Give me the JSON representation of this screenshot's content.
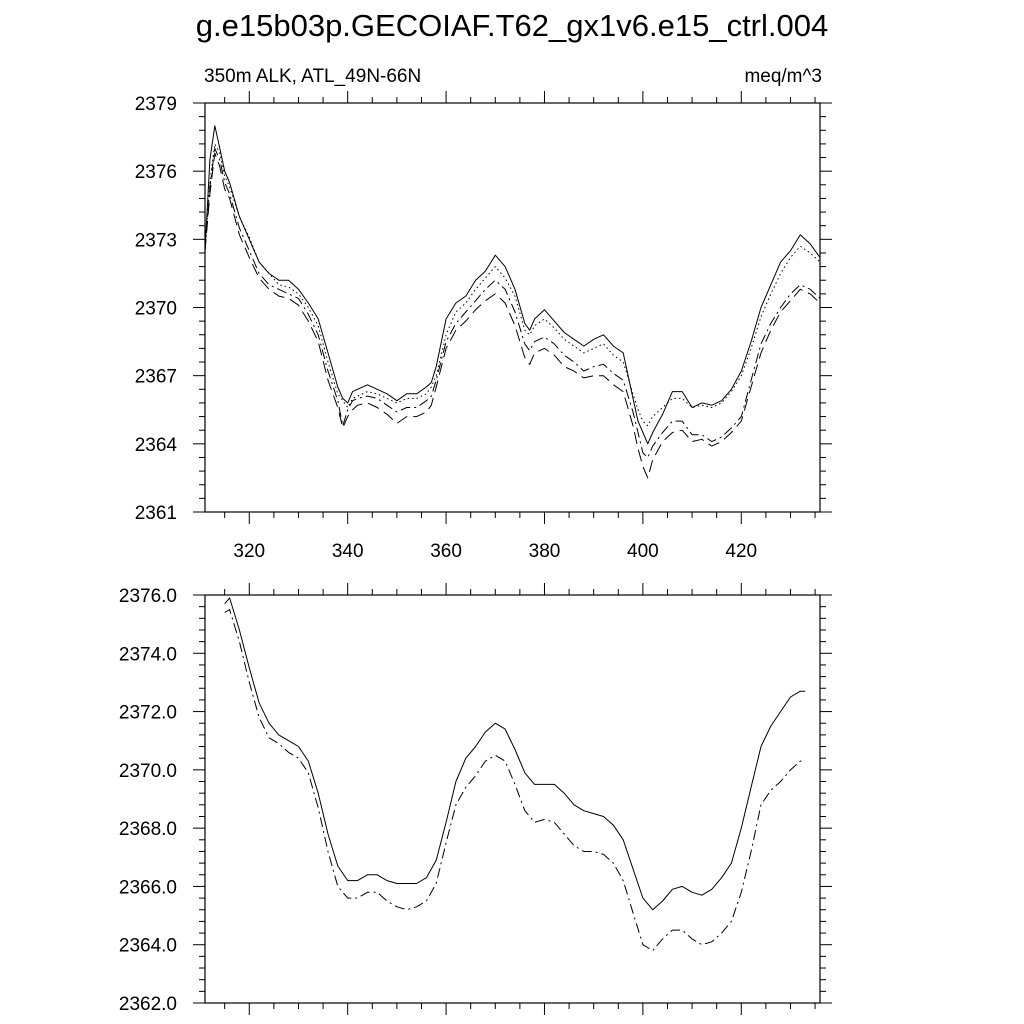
{
  "title": "g.e15b03p.GECOIAF.T62_gx1v6.e15_ctrl.004",
  "chart_data": [
    {
      "type": "line",
      "title": "g.e15b03p.GECOIAF.T62_gx1v6.e15_ctrl.004",
      "left_label": "350m ALK, ATL_49N-66N",
      "right_label": "meq/m^3",
      "xlim": [
        311,
        436
      ],
      "ylim": [
        2361,
        2379
      ],
      "x_ticks": [
        320,
        340,
        360,
        380,
        400,
        420
      ],
      "x_tick_labels": [
        "320",
        "340",
        "360",
        "380",
        "400",
        "420"
      ],
      "y_ticks": [
        2361,
        2364,
        2367,
        2370,
        2373,
        2376,
        2379
      ],
      "y_tick_labels": [
        "2361",
        "2364",
        "2367",
        "2370",
        "2373",
        "2376",
        "2379"
      ],
      "x": [
        311,
        312,
        313,
        314,
        315,
        316,
        318,
        320,
        322,
        324,
        326,
        328,
        330,
        332,
        334,
        336,
        338,
        339,
        340,
        341,
        342,
        344,
        346,
        348,
        350,
        352,
        354,
        356,
        357,
        358,
        360,
        362,
        364,
        366,
        368,
        370,
        372,
        374,
        376,
        377,
        378,
        380,
        382,
        384,
        386,
        388,
        390,
        392,
        394,
        396,
        398,
        399,
        400,
        401,
        402,
        404,
        406,
        408,
        410,
        412,
        414,
        416,
        418,
        420,
        422,
        424,
        426,
        428,
        430,
        432,
        434,
        436
      ],
      "series": [
        {
          "style": "solid",
          "values": [
            2372.5,
            2376.5,
            2378.0,
            2377.0,
            2376.0,
            2375.5,
            2374.0,
            2373.0,
            2372.0,
            2371.5,
            2371.2,
            2371.2,
            2370.8,
            2370.2,
            2369.5,
            2368.0,
            2366.5,
            2366.0,
            2365.8,
            2366.3,
            2366.4,
            2366.6,
            2366.4,
            2366.2,
            2365.9,
            2366.2,
            2366.2,
            2366.5,
            2366.7,
            2367.4,
            2369.5,
            2370.2,
            2370.5,
            2371.2,
            2371.6,
            2372.3,
            2371.8,
            2370.8,
            2369.3,
            2369.0,
            2369.5,
            2369.9,
            2369.4,
            2368.9,
            2368.6,
            2368.3,
            2368.6,
            2368.8,
            2368.3,
            2368.0,
            2366.0,
            2365.0,
            2364.5,
            2364.0,
            2364.5,
            2365.3,
            2366.3,
            2366.3,
            2365.6,
            2365.8,
            2365.7,
            2365.9,
            2366.4,
            2367.2,
            2368.5,
            2370.0,
            2371.0,
            2372.0,
            2372.5,
            2373.2,
            2372.8,
            2372.2
          ]
        },
        {
          "style": "dotted",
          "values": [
            2372.5,
            2375.5,
            2377.2,
            2376.8,
            2375.8,
            2375.3,
            2374.0,
            2373.1,
            2372.0,
            2371.5,
            2371.0,
            2370.9,
            2370.6,
            2370.0,
            2369.2,
            2367.6,
            2366.2,
            2365.9,
            2365.6,
            2366.0,
            2366.1,
            2366.3,
            2366.2,
            2366.0,
            2365.8,
            2366.0,
            2366.0,
            2366.2,
            2366.5,
            2367.0,
            2368.8,
            2369.8,
            2370.2,
            2370.8,
            2371.3,
            2371.8,
            2371.3,
            2370.5,
            2369.0,
            2368.8,
            2369.2,
            2369.5,
            2369.1,
            2368.6,
            2368.3,
            2368.0,
            2368.2,
            2368.4,
            2367.9,
            2367.6,
            2366.2,
            2365.5,
            2365.0,
            2364.8,
            2365.2,
            2365.6,
            2366.0,
            2366.0,
            2365.6,
            2365.7,
            2365.6,
            2365.8,
            2366.3,
            2367.0,
            2368.2,
            2369.6,
            2370.6,
            2371.5,
            2372.2,
            2372.7,
            2372.4,
            2372.0
          ]
        },
        {
          "style": "dashed",
          "values": [
            2372.5,
            2375.3,
            2377.0,
            2376.5,
            2375.5,
            2375.0,
            2373.5,
            2372.5,
            2371.5,
            2371.0,
            2370.8,
            2370.6,
            2370.4,
            2369.7,
            2368.8,
            2367.2,
            2365.9,
            2364.8,
            2365.5,
            2365.9,
            2366.0,
            2366.1,
            2366.0,
            2365.7,
            2365.4,
            2365.6,
            2365.6,
            2365.9,
            2366.1,
            2366.8,
            2368.5,
            2369.3,
            2369.8,
            2370.3,
            2370.8,
            2371.2,
            2370.8,
            2369.8,
            2368.4,
            2368.1,
            2368.5,
            2368.7,
            2368.4,
            2367.9,
            2367.6,
            2367.2,
            2367.4,
            2367.5,
            2367.1,
            2366.8,
            2365.4,
            2364.5,
            2363.6,
            2363.4,
            2363.9,
            2364.5,
            2365.0,
            2365.0,
            2364.4,
            2364.4,
            2364.1,
            2364.3,
            2364.7,
            2365.2,
            2366.8,
            2368.4,
            2369.3,
            2370.0,
            2370.6,
            2371.0,
            2370.8,
            2370.4
          ]
        },
        {
          "style": "longdash",
          "values": [
            2372.5,
            2375.0,
            2376.8,
            2376.2,
            2375.2,
            2374.8,
            2373.2,
            2372.2,
            2371.3,
            2370.8,
            2370.5,
            2370.4,
            2370.1,
            2369.4,
            2368.5,
            2366.8,
            2365.6,
            2364.7,
            2365.2,
            2365.5,
            2365.7,
            2365.8,
            2365.6,
            2365.3,
            2364.9,
            2365.2,
            2365.2,
            2365.4,
            2365.7,
            2366.5,
            2368.2,
            2369.0,
            2369.4,
            2369.9,
            2370.3,
            2370.6,
            2370.2,
            2369.2,
            2367.8,
            2367.5,
            2368.0,
            2368.2,
            2367.9,
            2367.4,
            2367.2,
            2366.9,
            2367.0,
            2367.0,
            2366.6,
            2366.3,
            2364.8,
            2363.8,
            2363.0,
            2362.5,
            2363.3,
            2364.1,
            2364.5,
            2364.6,
            2364.1,
            2364.2,
            2363.9,
            2364.1,
            2364.5,
            2365.0,
            2366.5,
            2368.0,
            2369.0,
            2369.8,
            2370.3,
            2370.8,
            2370.6,
            2370.2
          ]
        }
      ]
    },
    {
      "type": "line",
      "xlim": [
        311,
        436
      ],
      "ylim": [
        2362,
        2376
      ],
      "x_ticks": [
        320,
        340,
        360,
        380,
        400,
        420
      ],
      "y_ticks": [
        2362,
        2364,
        2366,
        2368,
        2370,
        2372,
        2374,
        2376
      ],
      "y_tick_labels": [
        "2362.0",
        "2364.0",
        "2366.0",
        "2368.0",
        "2370.0",
        "2372.0",
        "2374.0",
        "2376.0"
      ],
      "x": [
        315,
        316,
        318,
        320,
        322,
        324,
        326,
        328,
        330,
        332,
        334,
        336,
        338,
        340,
        342,
        344,
        346,
        348,
        350,
        352,
        354,
        356,
        358,
        360,
        362,
        364,
        366,
        368,
        370,
        372,
        374,
        376,
        378,
        380,
        382,
        384,
        386,
        388,
        390,
        392,
        394,
        396,
        398,
        400,
        402,
        404,
        406,
        408,
        410,
        412,
        414,
        416,
        418,
        420,
        422,
        424,
        426,
        428,
        430,
        432,
        433
      ],
      "series": [
        {
          "style": "solid",
          "values": [
            2375.7,
            2375.9,
            2374.8,
            2373.5,
            2372.3,
            2371.6,
            2371.2,
            2371.0,
            2370.8,
            2370.3,
            2369.2,
            2367.8,
            2366.7,
            2366.2,
            2366.2,
            2366.4,
            2366.4,
            2366.2,
            2366.1,
            2366.1,
            2366.1,
            2366.3,
            2366.9,
            2368.2,
            2369.6,
            2370.4,
            2370.8,
            2371.3,
            2371.6,
            2371.4,
            2370.7,
            2369.9,
            2369.5,
            2369.5,
            2369.5,
            2369.2,
            2368.8,
            2368.6,
            2368.5,
            2368.4,
            2368.1,
            2367.6,
            2366.6,
            2365.6,
            2365.2,
            2365.5,
            2365.9,
            2366.0,
            2365.8,
            2365.7,
            2365.9,
            2366.3,
            2366.8,
            2368.0,
            2369.4,
            2370.8,
            2371.5,
            2372.0,
            2372.5,
            2372.7,
            2372.7
          ]
        },
        {
          "style": "dashed",
          "values": [
            2375.4,
            2375.5,
            2374.4,
            2373.0,
            2371.8,
            2371.1,
            2370.9,
            2370.6,
            2370.4,
            2369.9,
            2368.7,
            2367.2,
            2366.0,
            2365.6,
            2365.6,
            2365.8,
            2365.8,
            2365.5,
            2365.3,
            2365.2,
            2365.3,
            2365.5,
            2366.1,
            2367.5,
            2368.8,
            2369.4,
            2369.8,
            2370.3,
            2370.5,
            2370.3,
            2369.5,
            2368.6,
            2368.2,
            2368.3,
            2368.2,
            2367.8,
            2367.4,
            2367.2,
            2367.2,
            2367.1,
            2366.8,
            2366.2,
            2365.1,
            2364.0,
            2363.8,
            2364.2,
            2364.5,
            2364.5,
            2364.2,
            2364.0,
            2364.1,
            2364.4,
            2364.8,
            2365.8,
            2367.2,
            2368.8,
            2369.3,
            2369.6,
            2370.0,
            2370.3,
            2370.3
          ]
        }
      ]
    }
  ]
}
